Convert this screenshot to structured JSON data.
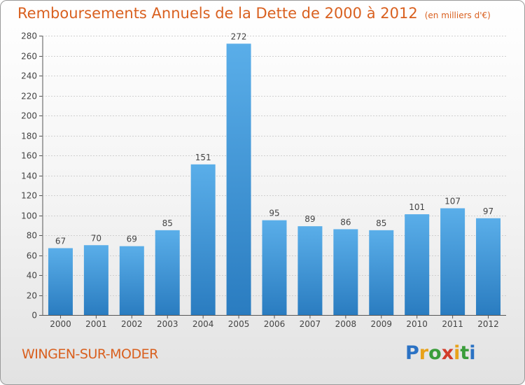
{
  "header": {
    "title": "Remboursements Annuels de la Dette de 2000 à 2012",
    "unit": "(en milliers d'€)"
  },
  "footer": {
    "city": "WINGEN-SUR-MODER",
    "logo_text": "Proxiti"
  },
  "colors": {
    "accent": "#d9601f",
    "bar_top": "#5aaee9",
    "bar_bottom": "#2a7cc0"
  },
  "chart_data": {
    "type": "bar",
    "title": "Remboursements Annuels de la Dette de 2000 à 2012",
    "subtitle": "(en milliers d'€)",
    "categories": [
      "2000",
      "2001",
      "2002",
      "2003",
      "2004",
      "2005",
      "2006",
      "2007",
      "2008",
      "2009",
      "2010",
      "2011",
      "2012"
    ],
    "values": [
      67,
      70,
      69,
      85,
      151,
      272,
      95,
      89,
      86,
      85,
      101,
      107,
      97
    ],
    "xlabel": "",
    "ylabel": "",
    "ylim": [
      0,
      280
    ],
    "yticks": [
      0,
      20,
      40,
      60,
      80,
      100,
      120,
      140,
      160,
      180,
      200,
      220,
      240,
      260,
      280
    ],
    "grid": true,
    "data_labels": true,
    "legend": "none"
  }
}
